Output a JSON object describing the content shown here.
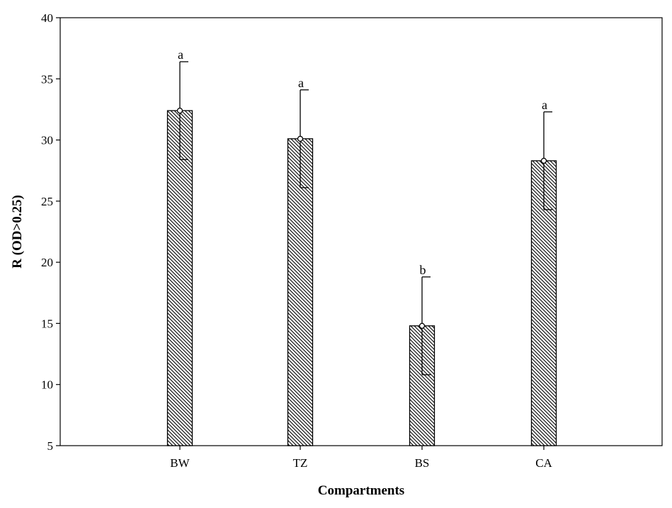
{
  "chart_data": {
    "type": "bar",
    "title": "",
    "xlabel": "Compartments",
    "ylabel": "R (OD>0.25)",
    "categories": [
      "BW",
      "TZ",
      "BS",
      "CA"
    ],
    "values": [
      32.4,
      30.1,
      14.8,
      28.3
    ],
    "error_upper": [
      36.4,
      34.1,
      18.8,
      32.3
    ],
    "error_lower": [
      28.4,
      26.1,
      10.8,
      24.3
    ],
    "significance_labels": [
      "a",
      "a",
      "b",
      "a"
    ],
    "ylim": [
      5,
      40
    ],
    "yticks": [
      "5",
      "10",
      "15",
      "20",
      "25",
      "30",
      "35",
      "40"
    ],
    "grid": false,
    "legend": "none",
    "bar_fill": "diagonal-hatch",
    "colors": {
      "bar_stroke": "#000000",
      "hatch": "#000000",
      "background": "#ffffff"
    }
  }
}
